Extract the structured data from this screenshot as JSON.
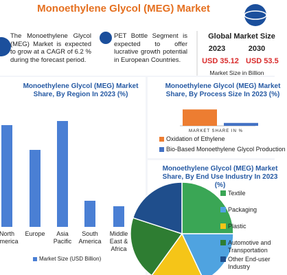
{
  "header": {
    "title": "Monoethylene Glycol (MEG) Market"
  },
  "highlights": [
    "The Monoethylene Glycol (MEG) Market is expected to grow at a CAGR of 6.2 % during the forecast period.",
    "PET Bottle Segment is expected to offer lucrative growth potential in European Countries."
  ],
  "market_size": {
    "title": "Global Market Size",
    "years": [
      "2023",
      "2030"
    ],
    "values": [
      "USD 35.12",
      "USD 53.5"
    ],
    "note": "Market Size in Billion"
  },
  "chart_data": [
    {
      "type": "bar",
      "title": "Monoethylene Glycol (MEG) Market Share, By Region In 2023 (%)",
      "categories": [
        "North America",
        "Europe",
        "Asia Pacific",
        "South America",
        "Middle East & Africa"
      ],
      "series": [
        {
          "name": "Market Size (USD Billion)",
          "color": "#4a7fd4",
          "values": [
            37,
            28,
            38.5,
            9.5,
            7.5
          ]
        }
      ],
      "ylim": [
        0,
        40
      ]
    },
    {
      "type": "bar",
      "title": "Monoethylene Glycol (MEG) Market Share, By Process Size In 2023 (%)",
      "x_label": "MARKET SHARE IN %",
      "series": [
        {
          "name": "Oxidation of Ethylene",
          "color": "#ed7d31",
          "values": [
            85
          ]
        },
        {
          "name": "Bio-Based Monoethylene Glycol Production",
          "color": "#4472c4",
          "values": [
            15
          ]
        }
      ],
      "ylim": [
        0,
        100
      ]
    },
    {
      "type": "pie",
      "title": "Monoethylene Glycol (MEG) Market Share, By End Use Industry In 2023 (%)",
      "categories": [
        "Textile",
        "Packaging",
        "Plastic",
        "Automotive and Transportation",
        "Other End-user Industry"
      ],
      "values": [
        25,
        18,
        17,
        20,
        20
      ],
      "colors": [
        "#3aa655",
        "#4fa3e0",
        "#f5c518",
        "#2e7d32",
        "#1f4e8c"
      ]
    }
  ]
}
